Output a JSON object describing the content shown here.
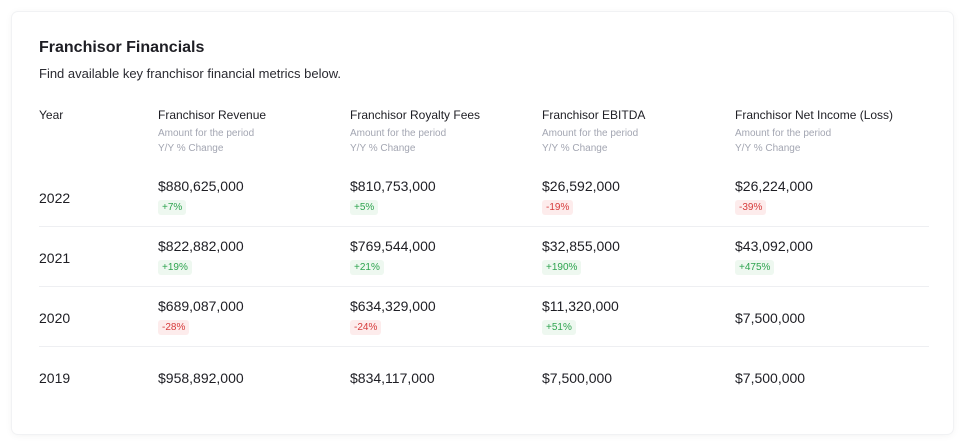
{
  "card": {
    "title": "Franchisor Financials",
    "subtitle": "Find available key franchisor financial metrics below."
  },
  "columns": {
    "year": "Year",
    "revenue": "Franchisor Revenue",
    "royalty": "Franchisor Royalty Fees",
    "ebitda": "Franchisor EBITDA",
    "net_income": "Franchisor Net Income (Loss)",
    "sub_amount": "Amount for the period",
    "sub_change": "Y/Y % Change"
  },
  "rows": [
    {
      "year": "2022",
      "revenue": {
        "value": "$880,625,000",
        "change": "+7%"
      },
      "royalty": {
        "value": "$810,753,000",
        "change": "+5%"
      },
      "ebitda": {
        "value": "$26,592,000",
        "change": "-19%"
      },
      "net_income": {
        "value": "$26,224,000",
        "change": "-39%"
      }
    },
    {
      "year": "2021",
      "revenue": {
        "value": "$822,882,000",
        "change": "+19%"
      },
      "royalty": {
        "value": "$769,544,000",
        "change": "+21%"
      },
      "ebitda": {
        "value": "$32,855,000",
        "change": "+190%"
      },
      "net_income": {
        "value": "$43,092,000",
        "change": "+475%"
      }
    },
    {
      "year": "2020",
      "revenue": {
        "value": "$689,087,000",
        "change": "-28%"
      },
      "royalty": {
        "value": "$634,329,000",
        "change": "-24%"
      },
      "ebitda": {
        "value": "$11,320,000",
        "change": "+51%"
      },
      "net_income": {
        "value": "$7,500,000"
      }
    },
    {
      "year": "2019",
      "revenue": {
        "value": "$958,892,000"
      },
      "royalty": {
        "value": "$834,117,000"
      },
      "ebitda": {
        "value": "$7,500,000"
      },
      "net_income": {
        "value": "$7,500,000"
      }
    }
  ],
  "colors": {
    "positive": "#2ea44f",
    "negative": "#d63b3b"
  }
}
